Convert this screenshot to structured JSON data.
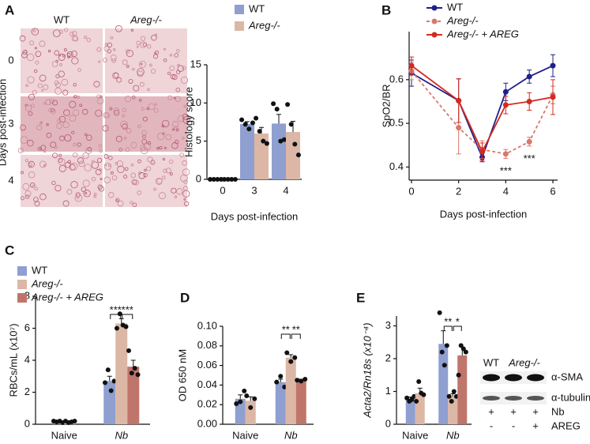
{
  "histology": {
    "panel_label": "A",
    "columns": [
      "WT",
      "Areg-/-"
    ],
    "rows": [
      "0",
      "3",
      "4"
    ],
    "side_label": "Days post-infection"
  },
  "chart_data": [
    {
      "type": "bar",
      "ylabel": "Histology score",
      "xlabel": "Days post-infection",
      "categories": [
        "0",
        "3",
        "4"
      ],
      "ylim": [
        0,
        15
      ],
      "yticks": [
        0,
        5,
        10,
        15
      ],
      "series": [
        {
          "name": "WT",
          "color": "#8e9fd0",
          "values": [
            0,
            7.25,
            7.3
          ],
          "errors": [
            0,
            0.3,
            1.2
          ],
          "points": [
            [
              0,
              0,
              0,
              0
            ],
            [
              7.8,
              7.2,
              6.6,
              7.4
            ],
            [
              9.9,
              9.2,
              5.0,
              5.2
            ]
          ]
        },
        {
          "name": "Areg-/-",
          "color": "#dcb7a6",
          "values": [
            0,
            6.0,
            6.2
          ],
          "errors": [
            0,
            0.8,
            1.4
          ],
          "points": [
            [
              0,
              0,
              0,
              0
            ],
            [
              8.0,
              6.3,
              5.0,
              4.7
            ],
            [
              9.8,
              7.2,
              4.6,
              3.2
            ]
          ]
        }
      ]
    },
    {
      "type": "line",
      "panel_label": "B",
      "ylabel": "SpO2/BR",
      "xlabel": "Days post-infection",
      "x": [
        0,
        2,
        3,
        4,
        5,
        6
      ],
      "xlim": [
        0,
        6
      ],
      "xticks": [
        0,
        2,
        4,
        6
      ],
      "ylim": [
        0.37,
        0.71
      ],
      "yticks": [
        0.4,
        0.5,
        0.6
      ],
      "series": [
        {
          "name": "WT",
          "color": "#1f1f8a",
          "values": [
            0.615,
            0.552,
            0.422,
            0.572,
            0.607,
            0.632
          ],
          "errors": [
            0.03,
            0.05,
            0.01,
            0.02,
            0.015,
            0.025
          ]
        },
        {
          "name": "Areg-/-",
          "color": "#d9776b",
          "dashed": true,
          "values": [
            0.62,
            0.49,
            0.44,
            0.43,
            0.458,
            0.565
          ],
          "errors": [
            0.02,
            0.06,
            0.02,
            0.01,
            0.01,
            0.02
          ]
        },
        {
          "name": "Areg-/- + AREG",
          "color": "#d42a20",
          "values": [
            0.632,
            0.552,
            0.435,
            0.542,
            0.55,
            0.56
          ],
          "errors": [
            0.02,
            0.05,
            0.02,
            0.02,
            0.02,
            0.04
          ]
        }
      ],
      "annotations": [
        "***",
        "***"
      ]
    },
    {
      "type": "bar",
      "panel_label": "C",
      "ylabel": "RBCs/mL (x10⁷)",
      "categories": [
        "Naive",
        "Nb"
      ],
      "ylim": [
        0,
        8
      ],
      "yticks": [
        0,
        2,
        4,
        6,
        8
      ],
      "series": [
        {
          "name": "WT",
          "color": "#8e9fd0",
          "values": [
            0.18,
            2.7
          ],
          "errors": [
            0.05,
            0.3
          ],
          "points": [
            [
              0.2,
              0.15,
              0.2,
              0.1
            ],
            [
              2.6,
              3.4,
              2.1,
              2.7
            ]
          ]
        },
        {
          "name": "Areg-/-",
          "color": "#dcb7a6",
          "values": [
            0.17,
            6.3
          ],
          "errors": [
            0.05,
            0.3
          ],
          "points": [
            [
              0.2,
              0.1,
              0.15,
              0.2
            ],
            [
              6.0,
              6.9,
              6.2,
              6.1
            ]
          ]
        },
        {
          "name": "Areg-/- + AREG",
          "color": "#c0756a",
          "values": [
            null,
            3.6
          ],
          "errors": [
            null,
            0.4
          ],
          "points": [
            null,
            [
              4.6,
              3.2,
              3.5,
              3.1
            ]
          ]
        }
      ],
      "annotations": [
        "***",
        "***"
      ]
    },
    {
      "type": "bar",
      "panel_label": "D",
      "ylabel": "OD 650 nM",
      "categories": [
        "Naive",
        "Nb"
      ],
      "ylim": [
        0,
        0.1
      ],
      "yticks": [
        {
          "value": 0,
          "label": "0.00"
        },
        {
          "value": 0.02,
          "label": "0.02"
        },
        {
          "value": 0.04,
          "label": "0.04"
        },
        {
          "value": 0.06,
          "label": "0.06"
        },
        {
          "value": 0.08,
          "label": "0.08"
        },
        {
          "value": 0.1,
          "label": "0.10"
        }
      ],
      "series": [
        {
          "color": "#8e9fd0",
          "values": [
            0.026,
            0.043
          ],
          "errors": [
            0.004,
            0.003
          ],
          "points": [
            [
              0.021,
              0.023,
              0.034
            ],
            [
              0.043,
              0.049,
              0.038
            ]
          ]
        },
        {
          "color": "#dcb7a6",
          "values": [
            0.024,
            0.068
          ],
          "errors": [
            0.004,
            0.003
          ],
          "points": [
            [
              0.029,
              0.017,
              0.026
            ],
            [
              0.073,
              0.064,
              0.068
            ]
          ]
        },
        {
          "color": "#c0756a",
          "values": [
            null,
            0.045
          ],
          "errors": [
            null,
            0.001
          ],
          "points": [
            null,
            [
              0.045,
              0.044,
              0.046
            ]
          ]
        }
      ],
      "annotations": [
        "**",
        "**"
      ]
    },
    {
      "type": "bar",
      "panel_label": "E",
      "ylabel": "Acta2/Rn18s (x10⁻⁴)",
      "categories": [
        "Naive",
        "Nb"
      ],
      "ylim": [
        0,
        3.3
      ],
      "yticks": [
        0,
        1,
        2,
        3
      ],
      "series": [
        {
          "color": "#8e9fd0",
          "values": [
            0.78,
            2.45
          ],
          "errors": [
            0.05,
            0.4
          ],
          "points": [
            [
              0.8,
              0.7,
              0.75,
              0.85
            ],
            [
              3.4,
              2.2,
              1.8,
              2.4
            ]
          ]
        },
        {
          "color": "#dcb7a6",
          "values": [
            0.95,
            0.85
          ],
          "errors": [
            0.15,
            0.08
          ],
          "points": [
            [
              0.7,
              1.3,
              0.95,
              0.9
            ],
            [
              0.85,
              0.7,
              1.0,
              0.85
            ]
          ]
        },
        {
          "color": "#c0756a",
          "values": [
            null,
            2.1
          ],
          "errors": [
            null,
            0.25
          ],
          "points": [
            null,
            [
              1.5,
              2.4,
              2.3,
              2.2
            ]
          ]
        }
      ],
      "annotations": [
        "**",
        "*"
      ]
    }
  ],
  "blot": {
    "columns": [
      "WT",
      "Areg-/-"
    ],
    "bands": [
      "α-SMA",
      "α-tubulin"
    ],
    "rows": [
      {
        "label": "Nb",
        "signs": [
          "+",
          "+",
          "+"
        ]
      },
      {
        "label": "AREG",
        "signs": [
          "-",
          "-",
          "+"
        ]
      }
    ]
  }
}
